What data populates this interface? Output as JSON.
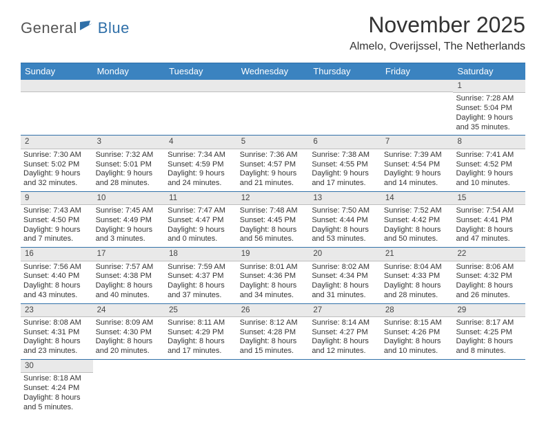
{
  "logo": {
    "word1": "General",
    "word2": "Blue",
    "flag_color": "#2f6fa8"
  },
  "header": {
    "month_title": "November 2025",
    "location": "Almelo, Overijssel, The Netherlands"
  },
  "calendar": {
    "header_bg": "#3b83c0",
    "header_fg": "#ffffff",
    "rule_color": "#2f6fa8",
    "datebar_bg": "#e9e9e9",
    "day_names": [
      "Sunday",
      "Monday",
      "Tuesday",
      "Wednesday",
      "Thursday",
      "Friday",
      "Saturday"
    ],
    "weeks": [
      [
        null,
        null,
        null,
        null,
        null,
        null,
        {
          "d": "1",
          "sr": "Sunrise: 7:28 AM",
          "ss": "Sunset: 5:04 PM",
          "dl1": "Daylight: 9 hours",
          "dl2": "and 35 minutes."
        }
      ],
      [
        {
          "d": "2",
          "sr": "Sunrise: 7:30 AM",
          "ss": "Sunset: 5:02 PM",
          "dl1": "Daylight: 9 hours",
          "dl2": "and 32 minutes."
        },
        {
          "d": "3",
          "sr": "Sunrise: 7:32 AM",
          "ss": "Sunset: 5:01 PM",
          "dl1": "Daylight: 9 hours",
          "dl2": "and 28 minutes."
        },
        {
          "d": "4",
          "sr": "Sunrise: 7:34 AM",
          "ss": "Sunset: 4:59 PM",
          "dl1": "Daylight: 9 hours",
          "dl2": "and 24 minutes."
        },
        {
          "d": "5",
          "sr": "Sunrise: 7:36 AM",
          "ss": "Sunset: 4:57 PM",
          "dl1": "Daylight: 9 hours",
          "dl2": "and 21 minutes."
        },
        {
          "d": "6",
          "sr": "Sunrise: 7:38 AM",
          "ss": "Sunset: 4:55 PM",
          "dl1": "Daylight: 9 hours",
          "dl2": "and 17 minutes."
        },
        {
          "d": "7",
          "sr": "Sunrise: 7:39 AM",
          "ss": "Sunset: 4:54 PM",
          "dl1": "Daylight: 9 hours",
          "dl2": "and 14 minutes."
        },
        {
          "d": "8",
          "sr": "Sunrise: 7:41 AM",
          "ss": "Sunset: 4:52 PM",
          "dl1": "Daylight: 9 hours",
          "dl2": "and 10 minutes."
        }
      ],
      [
        {
          "d": "9",
          "sr": "Sunrise: 7:43 AM",
          "ss": "Sunset: 4:50 PM",
          "dl1": "Daylight: 9 hours",
          "dl2": "and 7 minutes."
        },
        {
          "d": "10",
          "sr": "Sunrise: 7:45 AM",
          "ss": "Sunset: 4:49 PM",
          "dl1": "Daylight: 9 hours",
          "dl2": "and 3 minutes."
        },
        {
          "d": "11",
          "sr": "Sunrise: 7:47 AM",
          "ss": "Sunset: 4:47 PM",
          "dl1": "Daylight: 9 hours",
          "dl2": "and 0 minutes."
        },
        {
          "d": "12",
          "sr": "Sunrise: 7:48 AM",
          "ss": "Sunset: 4:45 PM",
          "dl1": "Daylight: 8 hours",
          "dl2": "and 56 minutes."
        },
        {
          "d": "13",
          "sr": "Sunrise: 7:50 AM",
          "ss": "Sunset: 4:44 PM",
          "dl1": "Daylight: 8 hours",
          "dl2": "and 53 minutes."
        },
        {
          "d": "14",
          "sr": "Sunrise: 7:52 AM",
          "ss": "Sunset: 4:42 PM",
          "dl1": "Daylight: 8 hours",
          "dl2": "and 50 minutes."
        },
        {
          "d": "15",
          "sr": "Sunrise: 7:54 AM",
          "ss": "Sunset: 4:41 PM",
          "dl1": "Daylight: 8 hours",
          "dl2": "and 47 minutes."
        }
      ],
      [
        {
          "d": "16",
          "sr": "Sunrise: 7:56 AM",
          "ss": "Sunset: 4:40 PM",
          "dl1": "Daylight: 8 hours",
          "dl2": "and 43 minutes."
        },
        {
          "d": "17",
          "sr": "Sunrise: 7:57 AM",
          "ss": "Sunset: 4:38 PM",
          "dl1": "Daylight: 8 hours",
          "dl2": "and 40 minutes."
        },
        {
          "d": "18",
          "sr": "Sunrise: 7:59 AM",
          "ss": "Sunset: 4:37 PM",
          "dl1": "Daylight: 8 hours",
          "dl2": "and 37 minutes."
        },
        {
          "d": "19",
          "sr": "Sunrise: 8:01 AM",
          "ss": "Sunset: 4:36 PM",
          "dl1": "Daylight: 8 hours",
          "dl2": "and 34 minutes."
        },
        {
          "d": "20",
          "sr": "Sunrise: 8:02 AM",
          "ss": "Sunset: 4:34 PM",
          "dl1": "Daylight: 8 hours",
          "dl2": "and 31 minutes."
        },
        {
          "d": "21",
          "sr": "Sunrise: 8:04 AM",
          "ss": "Sunset: 4:33 PM",
          "dl1": "Daylight: 8 hours",
          "dl2": "and 28 minutes."
        },
        {
          "d": "22",
          "sr": "Sunrise: 8:06 AM",
          "ss": "Sunset: 4:32 PM",
          "dl1": "Daylight: 8 hours",
          "dl2": "and 26 minutes."
        }
      ],
      [
        {
          "d": "23",
          "sr": "Sunrise: 8:08 AM",
          "ss": "Sunset: 4:31 PM",
          "dl1": "Daylight: 8 hours",
          "dl2": "and 23 minutes."
        },
        {
          "d": "24",
          "sr": "Sunrise: 8:09 AM",
          "ss": "Sunset: 4:30 PM",
          "dl1": "Daylight: 8 hours",
          "dl2": "and 20 minutes."
        },
        {
          "d": "25",
          "sr": "Sunrise: 8:11 AM",
          "ss": "Sunset: 4:29 PM",
          "dl1": "Daylight: 8 hours",
          "dl2": "and 17 minutes."
        },
        {
          "d": "26",
          "sr": "Sunrise: 8:12 AM",
          "ss": "Sunset: 4:28 PM",
          "dl1": "Daylight: 8 hours",
          "dl2": "and 15 minutes."
        },
        {
          "d": "27",
          "sr": "Sunrise: 8:14 AM",
          "ss": "Sunset: 4:27 PM",
          "dl1": "Daylight: 8 hours",
          "dl2": "and 12 minutes."
        },
        {
          "d": "28",
          "sr": "Sunrise: 8:15 AM",
          "ss": "Sunset: 4:26 PM",
          "dl1": "Daylight: 8 hours",
          "dl2": "and 10 minutes."
        },
        {
          "d": "29",
          "sr": "Sunrise: 8:17 AM",
          "ss": "Sunset: 4:25 PM",
          "dl1": "Daylight: 8 hours",
          "dl2": "and 8 minutes."
        }
      ],
      [
        {
          "d": "30",
          "sr": "Sunrise: 8:18 AM",
          "ss": "Sunset: 4:24 PM",
          "dl1": "Daylight: 8 hours",
          "dl2": "and 5 minutes."
        },
        null,
        null,
        null,
        null,
        null,
        null
      ]
    ]
  }
}
